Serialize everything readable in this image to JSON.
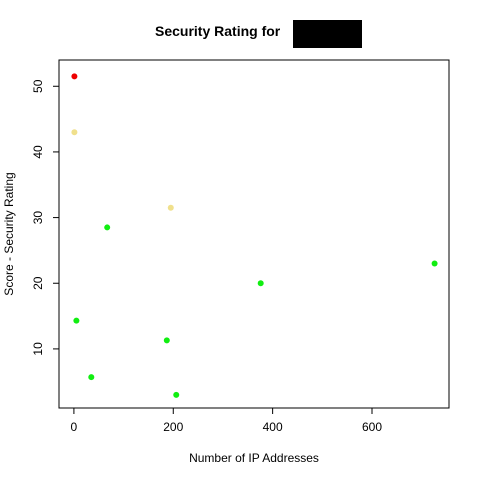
{
  "chart_data": {
    "type": "scatter",
    "title": "Security Rating for",
    "title_redacted": true,
    "xlabel": "Number of IP Addresses",
    "ylabel": "Score - Security Rating",
    "xlim": [
      -30,
      755
    ],
    "ylim": [
      1,
      54
    ],
    "x_ticks": [
      0,
      200,
      400,
      600
    ],
    "y_ticks": [
      10,
      20,
      30,
      40,
      50
    ],
    "grid": false,
    "legend": "none",
    "colors": {
      "red": "#ee0000",
      "yellow": "#f0e08c",
      "green": "#11ee11",
      "redaction": "#000000",
      "axis": "#000000"
    },
    "points": [
      {
        "x": 1,
        "y": 51.5,
        "color": "red"
      },
      {
        "x": 1,
        "y": 43.0,
        "color": "yellow"
      },
      {
        "x": 195,
        "y": 31.5,
        "color": "yellow"
      },
      {
        "x": 67,
        "y": 28.5,
        "color": "green"
      },
      {
        "x": 726,
        "y": 23.0,
        "color": "green"
      },
      {
        "x": 376,
        "y": 20.0,
        "color": "green"
      },
      {
        "x": 5,
        "y": 14.3,
        "color": "green"
      },
      {
        "x": 187,
        "y": 11.3,
        "color": "green"
      },
      {
        "x": 35,
        "y": 5.7,
        "color": "green"
      },
      {
        "x": 206,
        "y": 3.0,
        "color": "green"
      }
    ]
  }
}
